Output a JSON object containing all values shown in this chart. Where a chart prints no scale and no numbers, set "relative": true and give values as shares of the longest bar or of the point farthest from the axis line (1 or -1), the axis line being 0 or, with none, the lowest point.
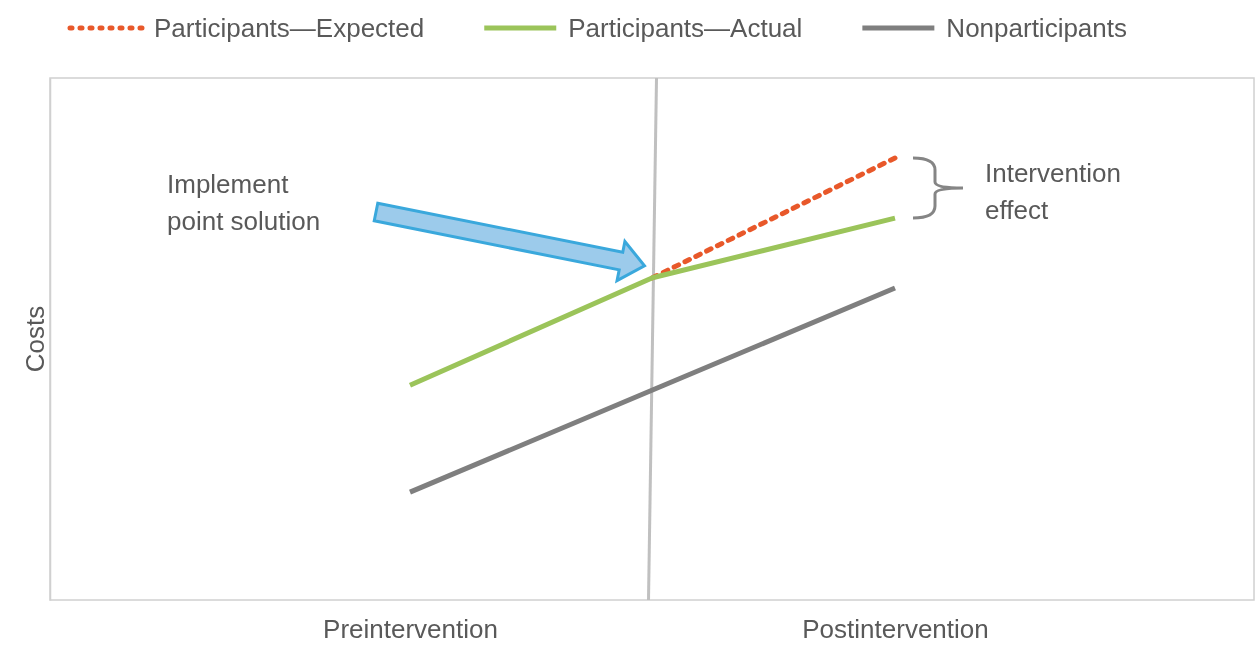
{
  "chart_data": {
    "type": "line",
    "relative": true,
    "categories": [
      "Preintervention",
      null,
      "Postintervention"
    ],
    "series": [
      {
        "name": "Participants—Expected",
        "color": "#e8582a",
        "line_style": "dotted",
        "values": [
          null,
          0.729,
          1
        ]
      },
      {
        "name": "Participants—Actual",
        "color": "#9bc45a",
        "line_style": "solid",
        "values": [
          0.486,
          0.729,
          0.864
        ]
      },
      {
        "name": "Nonparticipants",
        "color": "#7f7f7f",
        "line_style": "solid",
        "values": [
          0.244,
          0.475,
          0.706
        ]
      }
    ],
    "annotations": [
      "Implement point solution",
      "Intervention effect",
      "Costs"
    ],
    "legend": "top",
    "marker": "none"
  }
}
